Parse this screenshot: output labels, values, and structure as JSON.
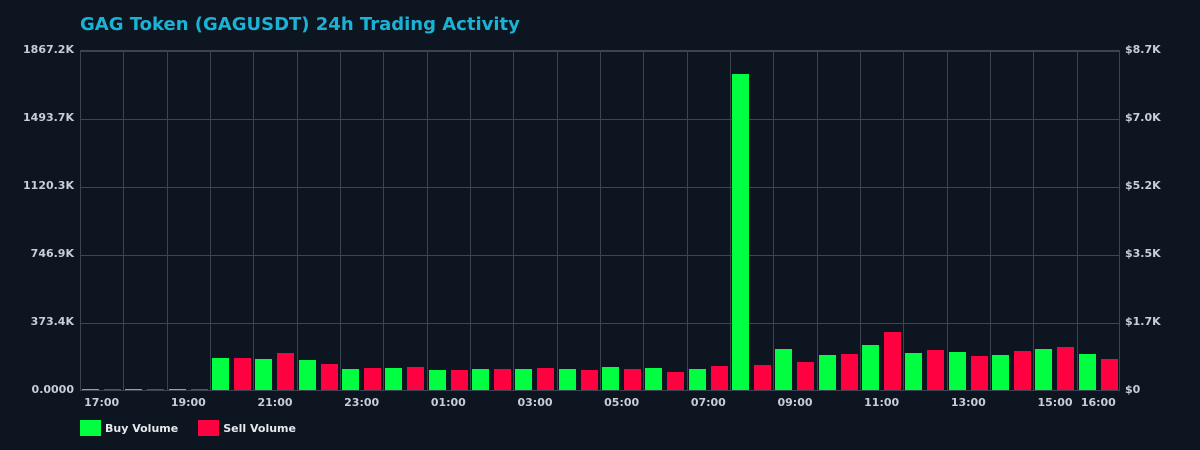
{
  "title": "GAG Token (GAGUSDT) 24h Trading Activity",
  "colors": {
    "buy": "#00ff41",
    "sell": "#ff0040",
    "title": "#1ab3d6",
    "grid": "#3b4450",
    "background": "#0d1520"
  },
  "legend": {
    "buy_label": "Buy Volume",
    "sell_label": "Sell Volume"
  },
  "axes": {
    "left_ticks": [
      "0.0000",
      "373.4K",
      "746.9K",
      "1120.3K",
      "1493.7K",
      "1867.2K"
    ],
    "right_ticks": [
      "$0",
      "$1.7K",
      "$3.5K",
      "$5.2K",
      "$7.0K",
      "$8.7K"
    ],
    "x_ticks": [
      "17:00",
      "19:00",
      "21:00",
      "23:00",
      "01:00",
      "03:00",
      "05:00",
      "07:00",
      "09:00",
      "11:00",
      "13:00",
      "15:00",
      "16:00"
    ]
  },
  "chart_data": {
    "type": "bar",
    "title": "GAG Token (GAGUSDT) 24h Trading Activity",
    "xlabel": "",
    "ylabel": "Volume",
    "y2label": "USD Value",
    "ylim": [
      0,
      1867.2
    ],
    "y2lim": [
      0,
      8.7
    ],
    "y_unit": "K",
    "grid": true,
    "legend_position": "bottom-left",
    "categories": [
      "17:00",
      "18:00",
      "19:00",
      "20:00",
      "21:00",
      "22:00",
      "23:00",
      "00:00",
      "01:00",
      "02:00",
      "03:00",
      "04:00",
      "05:00",
      "06:00",
      "07:00",
      "08:00",
      "09:00",
      "10:00",
      "11:00",
      "12:00",
      "13:00",
      "14:00",
      "15:00",
      "16:00"
    ],
    "series": [
      {
        "name": "Buy Volume",
        "color": "#00ff41",
        "values": [
          2,
          2,
          2,
          176,
          170,
          165,
          115,
          121,
          110,
          115,
          115,
          115,
          126,
          121,
          115,
          1735,
          225,
          192,
          247,
          203,
          209,
          192,
          225,
          198
        ]
      },
      {
        "name": "Sell Volume",
        "color": "#ff0040",
        "values": [
          2,
          2,
          2,
          176,
          203,
          143,
          121,
          126,
          110,
          115,
          121,
          110,
          115,
          99,
          132,
          137,
          154,
          198,
          318,
          220,
          187,
          214,
          236,
          170
        ]
      }
    ]
  }
}
